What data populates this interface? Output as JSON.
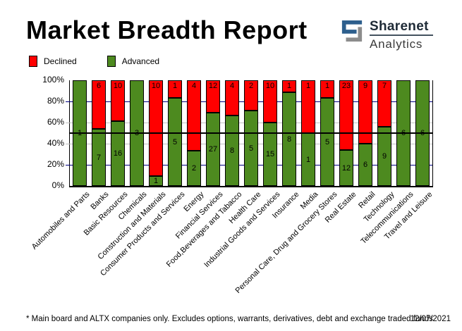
{
  "header": {
    "title": "Market Breadth Report",
    "logo": {
      "name": "Sharenet",
      "division": "Analytics"
    }
  },
  "legend": {
    "declined_label": "Declined",
    "advanced_label": "Advanced"
  },
  "footer": {
    "note": "* Main board and ALTX companies only. Excludes options, warrants, derivatives, debt and exchange traded funds",
    "date": "12/07/2021"
  },
  "colors": {
    "declined": "#ff0000",
    "advanced": "#4d8a1f",
    "gridline_major": "#000080",
    "gridline_minor": "#c0c0c0",
    "midline": "#000000",
    "logo_blue": "#2d5f8d",
    "logo_gray": "#8c8c8c"
  },
  "chart_data": {
    "type": "bar",
    "stacked": true,
    "unit": "percent of companies (advanced vs declined share of total)",
    "title": "Market Breadth Report",
    "xlabel": "",
    "ylabel": "",
    "ylim": [
      0,
      100
    ],
    "y_tick_labels": [
      "100%",
      "80%",
      "60%",
      "40%",
      "20%",
      "0%"
    ],
    "grid": "horizontal; navy lines at 20% and 80%, silver at 40% and 60%, black midline at 50%",
    "midline_percent": 50,
    "legend_position": "top-left",
    "categories": [
      "Automobiles and Parts",
      "Banks",
      "Basic Resources",
      "Chemicals",
      "Construction and Materials",
      "Consumer Products and Services",
      "Energy",
      "Financial Services",
      "Food,Beverages and Tabacco",
      "Health Care",
      "Industrial Goods and Services",
      "Insurance",
      "Media",
      "Personal Care, Drug and Grocery Stores",
      "Real Estate",
      "Retail",
      "Technology",
      "Telecommunications",
      "Travel and Leisure"
    ],
    "series": [
      {
        "name": "Declined",
        "role": "declined",
        "values": [
          0,
          6,
          10,
          0,
          10,
          1,
          4,
          12,
          4,
          2,
          10,
          1,
          1,
          1,
          23,
          9,
          7,
          0,
          0
        ]
      },
      {
        "name": "Advanced",
        "role": "advanced",
        "values": [
          1,
          7,
          16,
          3,
          1,
          5,
          2,
          27,
          8,
          5,
          15,
          8,
          1,
          5,
          12,
          6,
          9,
          6,
          6
        ]
      }
    ],
    "advanced_percent_of_total": [
      100,
      53.8,
      61.5,
      100,
      9.1,
      83.3,
      33.3,
      69.2,
      66.7,
      71.4,
      60.0,
      88.9,
      50.0,
      83.3,
      34.3,
      40.0,
      56.3,
      100,
      100
    ]
  }
}
